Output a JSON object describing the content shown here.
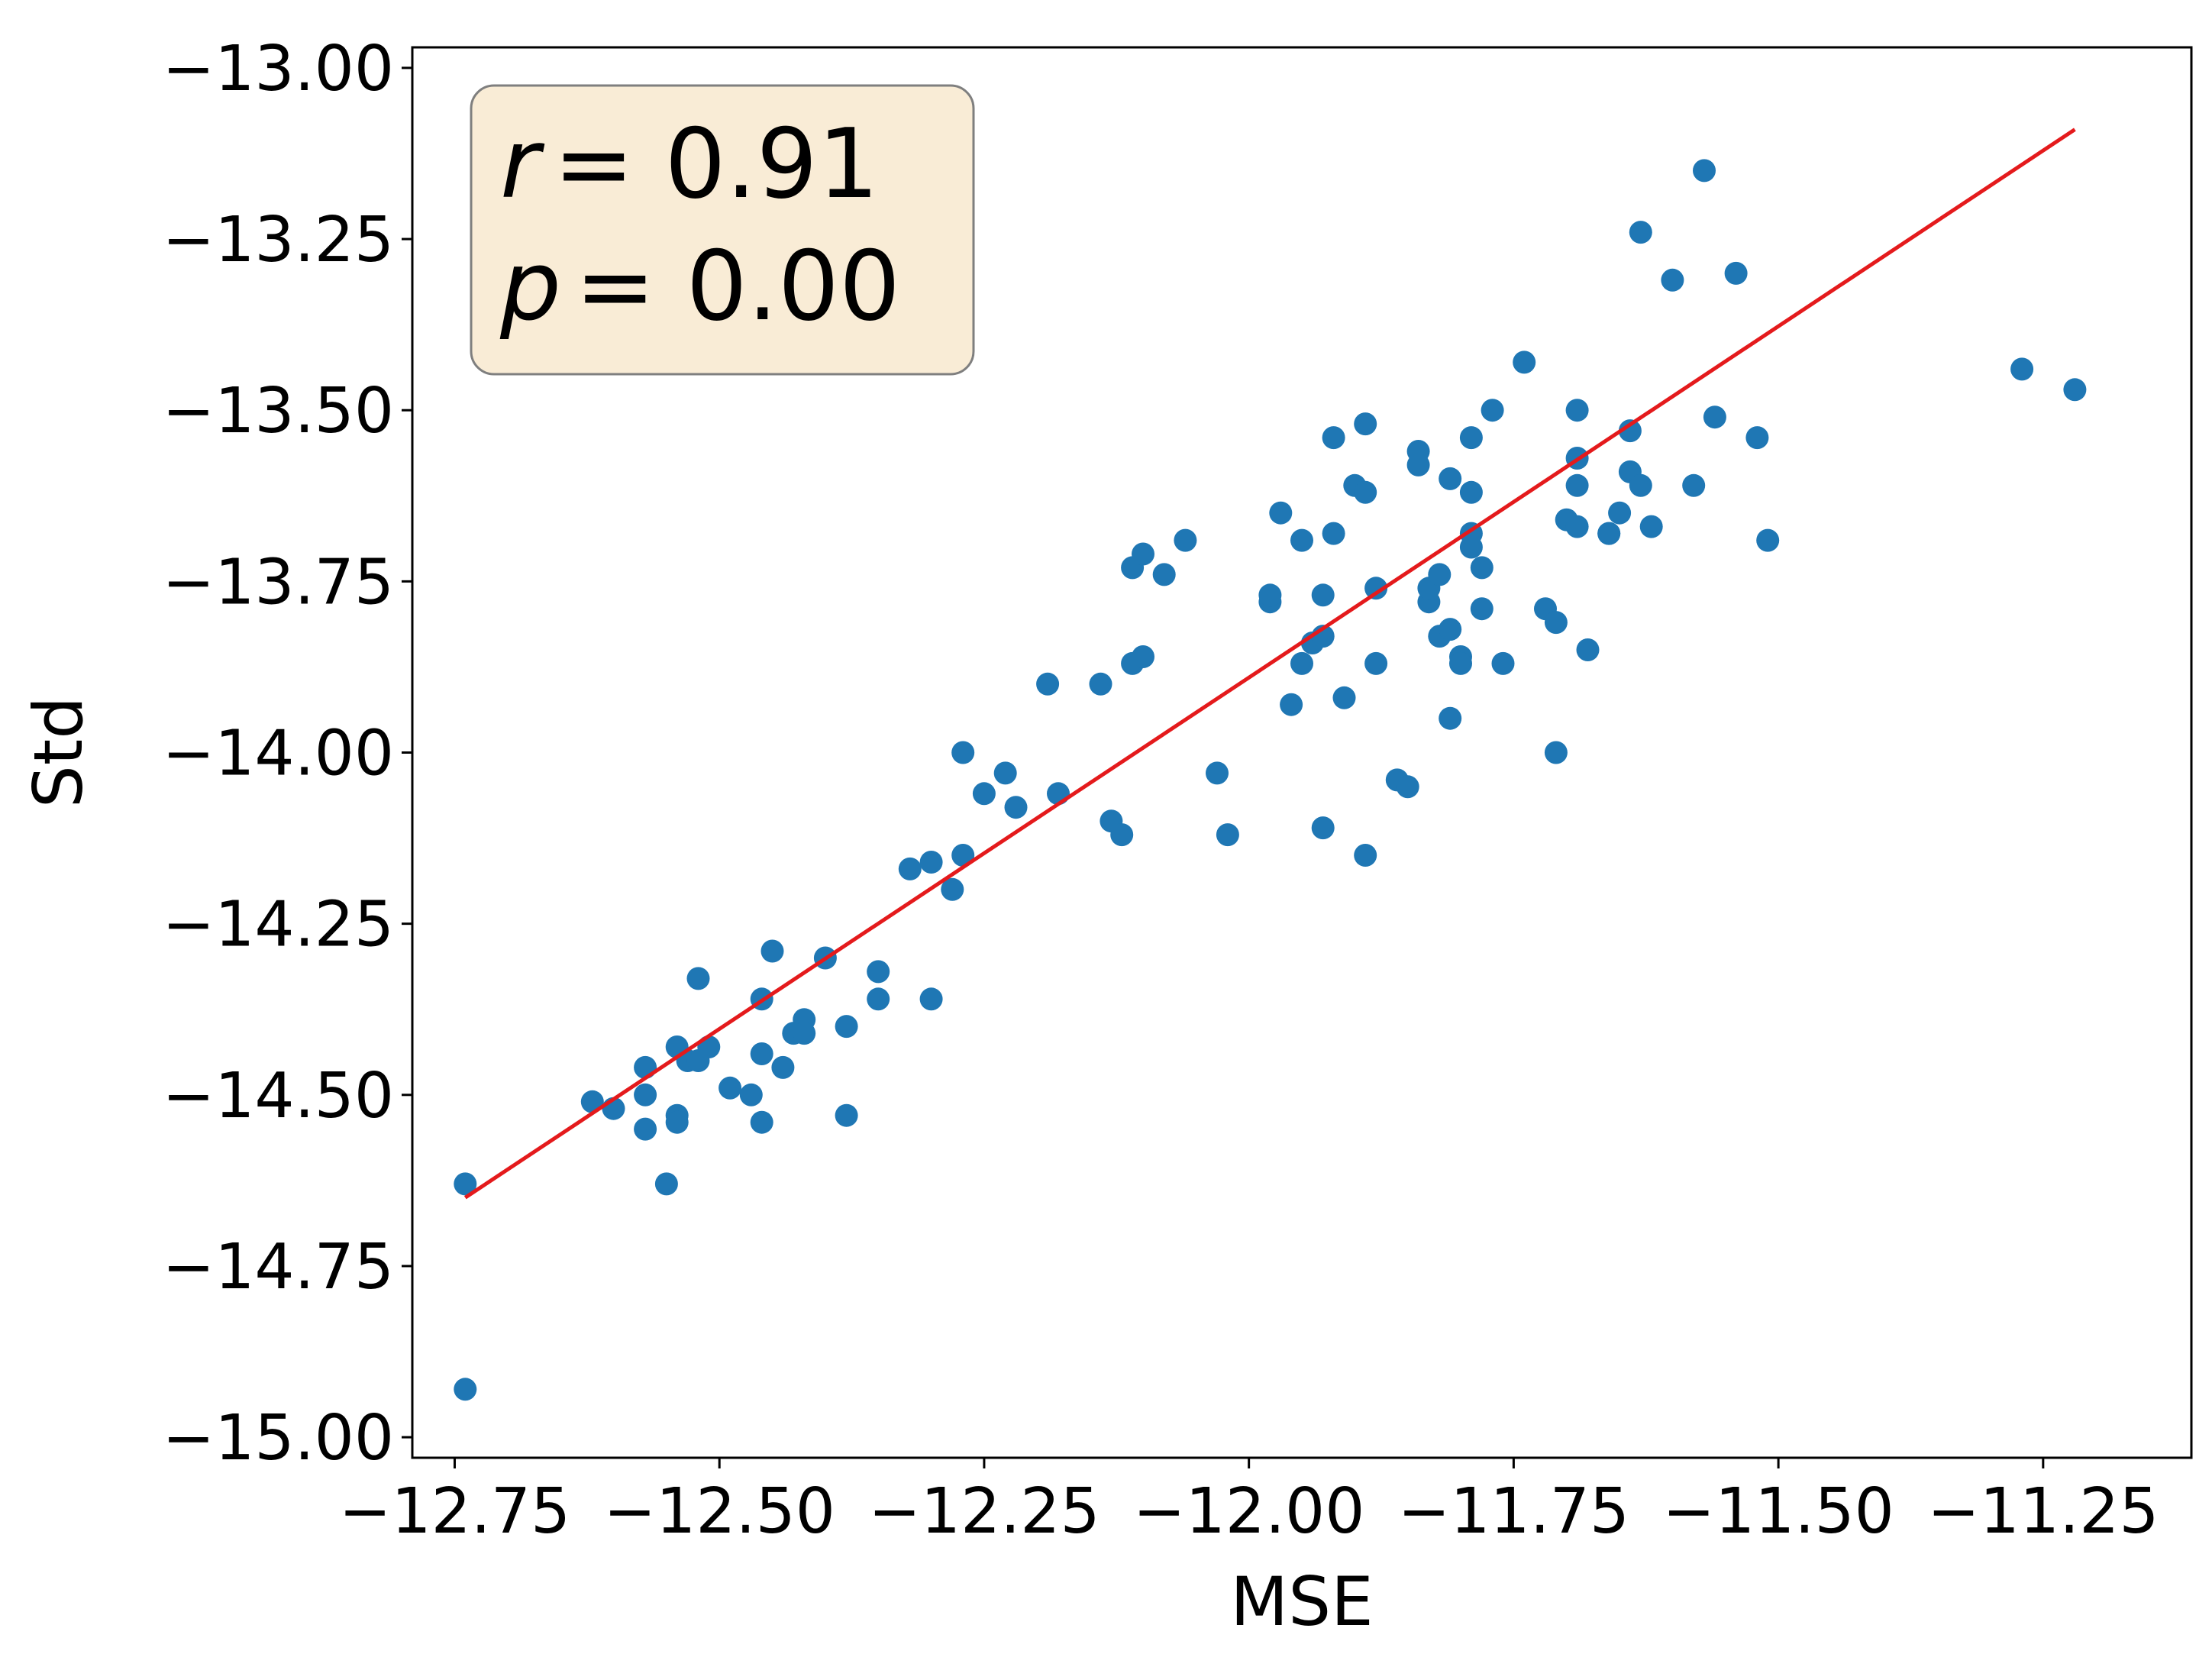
{
  "chart_data": {
    "type": "scatter",
    "xlabel": "MSE",
    "ylabel": "Std",
    "xlim": [
      -12.79,
      -11.11
    ],
    "ylim": [
      -15.03,
      -12.97
    ],
    "x_ticks": [
      -12.75,
      -12.5,
      -12.25,
      -12.0,
      -11.75,
      -11.5,
      -11.25
    ],
    "x_tick_labels": [
      "−12.75",
      "−12.50",
      "−12.25",
      "−12.00",
      "−11.75",
      "−11.50",
      "−11.25"
    ],
    "y_ticks": [
      -13.0,
      -13.25,
      -13.5,
      -13.75,
      -14.0,
      -14.25,
      -14.5,
      -14.75,
      -15.0
    ],
    "y_tick_labels": [
      "−13.00",
      "−13.25",
      "−13.50",
      "−13.75",
      "−14.00",
      "−14.25",
      "−14.50",
      "−14.75",
      "−15.00"
    ],
    "grid": false,
    "annotation": {
      "r_symbol": "r",
      "r_value": "= 0.91",
      "p_symbol": "p",
      "p_value": "= 0.00",
      "placement": "top-left",
      "box_color": "#f9ecd6"
    },
    "series": [
      {
        "kind": "points",
        "color": "#1f77b4",
        "points": [
          [
            -12.74,
            -14.63
          ],
          [
            -12.74,
            -14.93
          ],
          [
            -12.62,
            -14.51
          ],
          [
            -12.6,
            -14.52
          ],
          [
            -12.57,
            -14.46
          ],
          [
            -12.57,
            -14.5
          ],
          [
            -12.57,
            -14.55
          ],
          [
            -12.55,
            -14.63
          ],
          [
            -12.54,
            -14.53
          ],
          [
            -12.54,
            -14.54
          ],
          [
            -12.54,
            -14.43
          ],
          [
            -12.53,
            -14.45
          ],
          [
            -12.52,
            -14.45
          ],
          [
            -12.52,
            -14.33
          ],
          [
            -12.51,
            -14.43
          ],
          [
            -12.49,
            -14.49
          ],
          [
            -12.47,
            -14.5
          ],
          [
            -12.46,
            -14.54
          ],
          [
            -12.46,
            -14.44
          ],
          [
            -12.46,
            -14.36
          ],
          [
            -12.45,
            -14.29
          ],
          [
            -12.44,
            -14.46
          ],
          [
            -12.43,
            -14.41
          ],
          [
            -12.42,
            -14.39
          ],
          [
            -12.42,
            -14.41
          ],
          [
            -12.4,
            -14.3
          ],
          [
            -12.38,
            -14.53
          ],
          [
            -12.38,
            -14.4
          ],
          [
            -12.35,
            -14.36
          ],
          [
            -12.35,
            -14.32
          ],
          [
            -12.32,
            -14.17
          ],
          [
            -12.3,
            -14.36
          ],
          [
            -12.3,
            -14.16
          ],
          [
            -12.28,
            -14.2
          ],
          [
            -12.27,
            -14.0
          ],
          [
            -12.27,
            -14.15
          ],
          [
            -12.25,
            -14.06
          ],
          [
            -12.23,
            -14.03
          ],
          [
            -12.22,
            -14.08
          ],
          [
            -12.19,
            -13.9
          ],
          [
            -12.18,
            -14.06
          ],
          [
            -12.14,
            -13.9
          ],
          [
            -12.13,
            -14.1
          ],
          [
            -12.12,
            -14.12
          ],
          [
            -12.11,
            -13.87
          ],
          [
            -12.11,
            -13.73
          ],
          [
            -12.1,
            -13.71
          ],
          [
            -12.1,
            -13.86
          ],
          [
            -12.08,
            -13.74
          ],
          [
            -12.06,
            -13.69
          ],
          [
            -12.03,
            -14.03
          ],
          [
            -12.02,
            -14.12
          ],
          [
            -11.98,
            -13.78
          ],
          [
            -11.98,
            -13.77
          ],
          [
            -11.97,
            -13.65
          ],
          [
            -11.96,
            -13.93
          ],
          [
            -11.95,
            -13.87
          ],
          [
            -11.95,
            -13.69
          ],
          [
            -11.94,
            -13.84
          ],
          [
            -11.93,
            -13.83
          ],
          [
            -11.93,
            -13.77
          ],
          [
            -11.93,
            -14.11
          ],
          [
            -11.92,
            -13.68
          ],
          [
            -11.92,
            -13.54
          ],
          [
            -11.91,
            -13.92
          ],
          [
            -11.9,
            -13.61
          ],
          [
            -11.89,
            -13.52
          ],
          [
            -11.89,
            -13.62
          ],
          [
            -11.89,
            -14.15
          ],
          [
            -11.88,
            -13.87
          ],
          [
            -11.88,
            -13.76
          ],
          [
            -11.86,
            -14.04
          ],
          [
            -11.85,
            -14.05
          ],
          [
            -11.84,
            -13.56
          ],
          [
            -11.84,
            -13.58
          ],
          [
            -11.83,
            -13.78
          ],
          [
            -11.83,
            -13.76
          ],
          [
            -11.82,
            -13.83
          ],
          [
            -11.82,
            -13.74
          ],
          [
            -11.81,
            -13.6
          ],
          [
            -11.81,
            -13.95
          ],
          [
            -11.81,
            -13.82
          ],
          [
            -11.8,
            -13.86
          ],
          [
            -11.8,
            -13.87
          ],
          [
            -11.79,
            -13.62
          ],
          [
            -11.79,
            -13.54
          ],
          [
            -11.79,
            -13.7
          ],
          [
            -11.79,
            -13.68
          ],
          [
            -11.78,
            -13.79
          ],
          [
            -11.78,
            -13.73
          ],
          [
            -11.77,
            -13.5
          ],
          [
            -11.76,
            -13.87
          ],
          [
            -11.74,
            -13.43
          ],
          [
            -11.72,
            -13.79
          ],
          [
            -11.71,
            -13.81
          ],
          [
            -11.71,
            -14.0
          ],
          [
            -11.7,
            -13.66
          ],
          [
            -11.69,
            -13.67
          ],
          [
            -11.69,
            -13.5
          ],
          [
            -11.69,
            -13.57
          ],
          [
            -11.69,
            -13.61
          ],
          [
            -11.68,
            -13.85
          ],
          [
            -11.66,
            -13.68
          ],
          [
            -11.66,
            -13.68
          ],
          [
            -11.65,
            -13.65
          ],
          [
            -11.64,
            -13.59
          ],
          [
            -11.64,
            -13.53
          ],
          [
            -11.63,
            -13.24
          ],
          [
            -11.63,
            -13.61
          ],
          [
            -11.62,
            -13.67
          ],
          [
            -11.6,
            -13.31
          ],
          [
            -11.58,
            -13.61
          ],
          [
            -11.57,
            -13.15
          ],
          [
            -11.56,
            -13.51
          ],
          [
            -11.54,
            -13.3
          ],
          [
            -11.52,
            -13.54
          ],
          [
            -11.51,
            -13.69
          ],
          [
            -11.27,
            -13.44
          ],
          [
            -11.22,
            -13.47
          ]
        ]
      },
      {
        "kind": "line",
        "color": "#e41a1c",
        "x": [
          -12.74,
          -11.22
        ],
        "y": [
          -14.65,
          -13.09
        ]
      }
    ]
  }
}
